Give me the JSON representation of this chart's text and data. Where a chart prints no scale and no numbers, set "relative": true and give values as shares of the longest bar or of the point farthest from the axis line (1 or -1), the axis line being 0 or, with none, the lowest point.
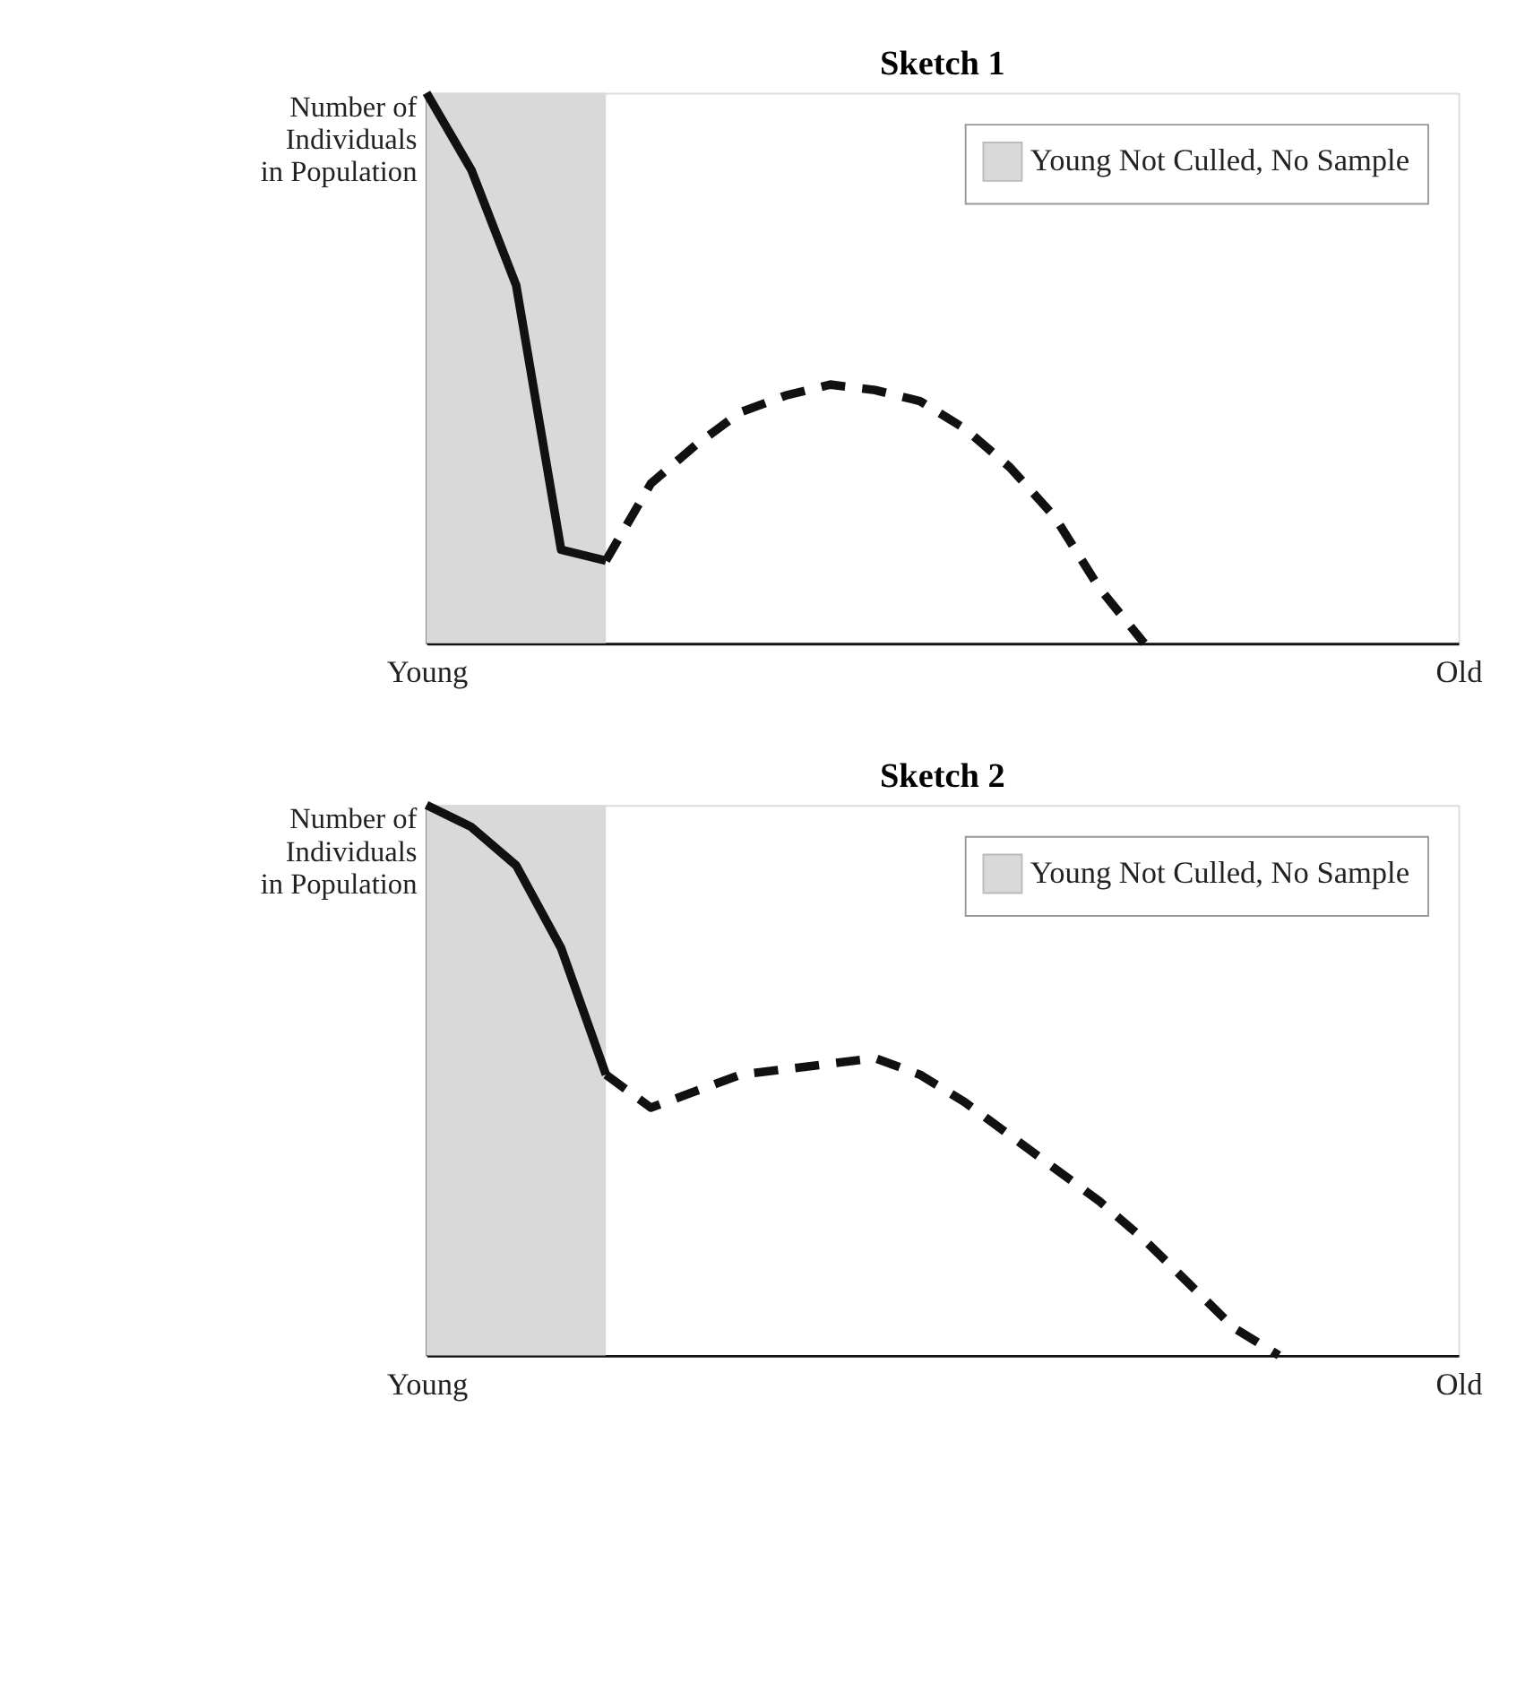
{
  "chart_data": [
    {
      "type": "line",
      "title": "Sketch 1",
      "ylabel": "Number of\nIndividuals\nin Population",
      "relative": true,
      "tick_labels": "x",
      "legend": "top right",
      "grid": false,
      "categories": [
        "Young",
        null,
        null,
        null,
        null,
        null,
        null,
        null,
        null,
        null,
        null,
        null,
        null,
        null,
        null,
        null,
        null,
        null,
        null,
        null,
        null,
        null,
        null,
        "Old"
      ],
      "series": [
        {
          "name": "Young Not Culled, No Sample",
          "type": "area",
          "color": "#d9d9d9",
          "values": [
            1,
            1,
            1,
            1,
            1,
            null,
            null,
            null,
            null,
            null,
            null,
            null,
            null,
            null,
            null,
            null,
            null,
            null,
            null,
            null,
            null,
            null,
            null,
            null
          ]
        },
        {
          "line_style": "solid",
          "color": "#111111",
          "values": [
            1.0,
            0.86,
            0.65,
            0.17,
            0.15,
            null,
            null,
            null,
            null,
            null,
            null,
            null,
            null,
            null,
            null,
            null,
            null,
            null,
            null,
            null,
            null,
            null,
            null,
            null
          ]
        },
        {
          "line_style": "dashed",
          "color": "#111111",
          "values": [
            null,
            null,
            null,
            null,
            0.15,
            0.29,
            0.36,
            0.42,
            0.45,
            0.47,
            0.46,
            0.44,
            0.39,
            0.32,
            0.23,
            0.1,
            0,
            null,
            null,
            null,
            null,
            null,
            null,
            null
          ]
        }
      ]
    },
    {
      "type": "line",
      "title": "Sketch 2",
      "ylabel": "Number of\nIndividuals\nin Population",
      "relative": true,
      "tick_labels": "x",
      "legend": "top right",
      "grid": false,
      "categories": [
        "Young",
        null,
        null,
        null,
        null,
        null,
        null,
        null,
        null,
        null,
        null,
        null,
        null,
        null,
        null,
        null,
        null,
        null,
        null,
        null,
        null,
        null,
        null,
        "Old"
      ],
      "series": [
        {
          "name": "Young Not Culled, No Sample",
          "type": "area",
          "color": "#d9d9d9",
          "values": [
            1,
            1,
            1,
            1,
            1,
            null,
            null,
            null,
            null,
            null,
            null,
            null,
            null,
            null,
            null,
            null,
            null,
            null,
            null,
            null,
            null,
            null,
            null,
            null
          ]
        },
        {
          "line_style": "solid",
          "color": "#111111",
          "values": [
            1.0,
            0.96,
            0.89,
            0.74,
            0.51,
            null,
            null,
            null,
            null,
            null,
            null,
            null,
            null,
            null,
            null,
            null,
            null,
            null,
            null,
            null,
            null,
            null,
            null,
            null
          ]
        },
        {
          "line_style": "dashed",
          "color": "#111111",
          "values": [
            null,
            null,
            null,
            null,
            0.51,
            0.45,
            0.48,
            0.51,
            0.52,
            0.53,
            0.54,
            0.51,
            0.46,
            0.4,
            0.34,
            0.28,
            0.21,
            0.13,
            0.05,
            0,
            null,
            null,
            null,
            null
          ]
        }
      ]
    }
  ]
}
